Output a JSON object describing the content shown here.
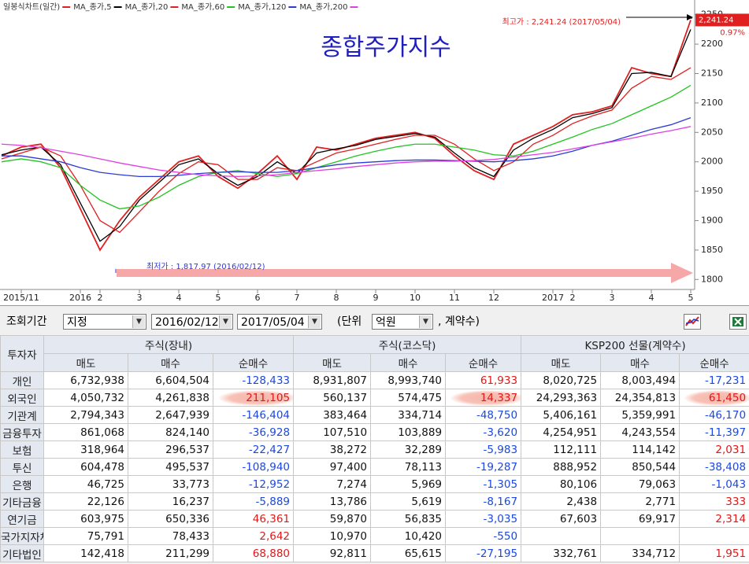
{
  "chart_data": {
    "type": "line",
    "title": "종합주가지수",
    "categories": [
      null,
      "2015/11",
      null,
      null,
      "2016",
      "2",
      null,
      "3",
      null,
      "4",
      null,
      "5",
      null,
      "6",
      null,
      "7",
      null,
      "8",
      null,
      "9",
      null,
      "10",
      null,
      "11",
      null,
      "12",
      null,
      null,
      "2017",
      "2",
      null,
      "3",
      null,
      "4",
      null,
      "5"
    ],
    "series": [
      {
        "name": "일봉식차트(일간)",
        "color": "#e02020",
        "values": [
          2010,
          2025,
          2030,
          1990,
          1920,
          1850,
          1900,
          1940,
          1970,
          2000,
          2010,
          1975,
          1955,
          1980,
          2010,
          1970,
          2025,
          2020,
          2030,
          2040,
          2045,
          2050,
          2040,
          2010,
          1985,
          1970,
          2030,
          2045,
          2060,
          2080,
          2085,
          2095,
          2160,
          2150,
          2145,
          2241
        ]
      },
      {
        "name": "MA_종가,5",
        "color": "#000000",
        "values": [
          2012,
          2020,
          2025,
          1995,
          1930,
          1865,
          1890,
          1935,
          1965,
          1995,
          2005,
          1980,
          1960,
          1975,
          2000,
          1980,
          2015,
          2022,
          2028,
          2038,
          2043,
          2048,
          2042,
          2015,
          1990,
          1975,
          2020,
          2040,
          2055,
          2075,
          2082,
          2092,
          2150,
          2152,
          2145,
          2225
        ]
      },
      {
        "name": "MA_종가,20",
        "color": "#e02020",
        "values": [
          2005,
          2015,
          2025,
          2010,
          1960,
          1900,
          1880,
          1915,
          1950,
          1980,
          2000,
          1995,
          1970,
          1970,
          1990,
          1985,
          2000,
          2015,
          2022,
          2030,
          2038,
          2045,
          2045,
          2030,
          2005,
          1985,
          2000,
          2030,
          2045,
          2065,
          2078,
          2088,
          2125,
          2145,
          2140,
          2160
        ]
      },
      {
        "name": "MA_종가,60",
        "color": "#22c322",
        "values": [
          2000,
          2005,
          2000,
          1990,
          1960,
          1935,
          1920,
          1925,
          1940,
          1960,
          1975,
          1982,
          1985,
          1980,
          1975,
          1980,
          1990,
          2000,
          2010,
          2018,
          2025,
          2030,
          2030,
          2025,
          2020,
          2012,
          2010,
          2018,
          2030,
          2042,
          2055,
          2065,
          2080,
          2095,
          2110,
          2130
        ]
      },
      {
        "name": "MA_종가,120",
        "color": "#2b3bd6",
        "values": [
          2010,
          2010,
          2005,
          2000,
          1990,
          1982,
          1978,
          1975,
          1975,
          1977,
          1980,
          1982,
          1983,
          1982,
          1982,
          1985,
          1990,
          1995,
          1998,
          2000,
          2002,
          2003,
          2003,
          2002,
          2001,
          2000,
          2002,
          2005,
          2010,
          2018,
          2028,
          2035,
          2045,
          2055,
          2063,
          2075
        ]
      },
      {
        "name": "MA_종가,200",
        "color": "#e040e0",
        "values": [
          2030,
          2028,
          2024,
          2018,
          2012,
          2005,
          1998,
          1992,
          1986,
          1982,
          1978,
          1976,
          1975,
          1976,
          1978,
          1982,
          1985,
          1988,
          1992,
          1995,
          1998,
          2000,
          2001,
          2001,
          2002,
          2004,
          2008,
          2012,
          2016,
          2022,
          2028,
          2034,
          2040,
          2047,
          2053,
          2060
        ]
      }
    ],
    "ylim": [
      1783,
      2275
    ],
    "yticks": [
      1800,
      1850,
      1900,
      1950,
      2000,
      2050,
      2100,
      2150,
      2200,
      2250
    ],
    "annotations": [
      {
        "text": "최고가 : 2,241.24 (2017/05/04)",
        "value": 2241.24,
        "color": "#e02020"
      },
      {
        "text": "최저가 : 1,817.97 (2016/02/12)",
        "value": 1817.97,
        "color": "#2b3bd6"
      }
    ],
    "last_price_label": "2,241.24",
    "change_label": "0.97%"
  },
  "controls": {
    "period_label": "조회기간",
    "period_mode": "지정",
    "start_date": "2016/02/12",
    "end_date": "2017/05/04",
    "unit_open": "(단위",
    "unit": "억원",
    "unit_close": ", 계약수)"
  },
  "table": {
    "corner": "투자자",
    "groups": [
      "주식(장내)",
      "주식(코스닥)",
      "KSP200 선물(계약수)"
    ],
    "subheaders": [
      "매도",
      "매수",
      "순매수"
    ],
    "rows": [
      {
        "label": "개인",
        "cells": [
          "6,732,938",
          "6,604,504",
          "-128,433",
          "8,931,807",
          "8,993,740",
          "61,933",
          "8,020,725",
          "8,003,494",
          "-17,231"
        ]
      },
      {
        "label": "외국인",
        "cells": [
          "4,050,732",
          "4,261,838",
          "211,105",
          "560,137",
          "574,475",
          "14,337",
          "24,293,363",
          "24,354,813",
          "61,450"
        ]
      },
      {
        "label": "기관계",
        "cells": [
          "2,794,343",
          "2,647,939",
          "-146,404",
          "383,464",
          "334,714",
          "-48,750",
          "5,406,161",
          "5,359,991",
          "-46,170"
        ]
      },
      {
        "label": "금융투자",
        "cells": [
          "861,068",
          "824,140",
          "-36,928",
          "107,510",
          "103,889",
          "-3,620",
          "4,254,951",
          "4,243,554",
          "-11,397"
        ]
      },
      {
        "label": "보험",
        "cells": [
          "318,964",
          "296,537",
          "-22,427",
          "38,272",
          "32,289",
          "-5,983",
          "112,111",
          "114,142",
          "2,031"
        ]
      },
      {
        "label": "투신",
        "cells": [
          "604,478",
          "495,537",
          "-108,940",
          "97,400",
          "78,113",
          "-19,287",
          "888,952",
          "850,544",
          "-38,408"
        ]
      },
      {
        "label": "은행",
        "cells": [
          "46,725",
          "33,773",
          "-12,952",
          "7,274",
          "5,969",
          "-1,305",
          "80,106",
          "79,063",
          "-1,043"
        ]
      },
      {
        "label": "기타금융",
        "cells": [
          "22,126",
          "16,237",
          "-5,889",
          "13,786",
          "5,619",
          "-8,167",
          "2,438",
          "2,771",
          "333"
        ]
      },
      {
        "label": "연기금",
        "cells": [
          "603,975",
          "650,336",
          "46,361",
          "59,870",
          "56,835",
          "-3,035",
          "67,603",
          "69,917",
          "2,314"
        ]
      },
      {
        "label": "국가지자체",
        "cells": [
          "75,791",
          "78,433",
          "2,642",
          "10,970",
          "10,420",
          "-550",
          null,
          null,
          null
        ]
      },
      {
        "label": "기타법인",
        "cells": [
          "142,418",
          "211,299",
          "68,880",
          "92,811",
          "65,615",
          "-27,195",
          "332,761",
          "334,712",
          "1,951"
        ]
      }
    ]
  }
}
